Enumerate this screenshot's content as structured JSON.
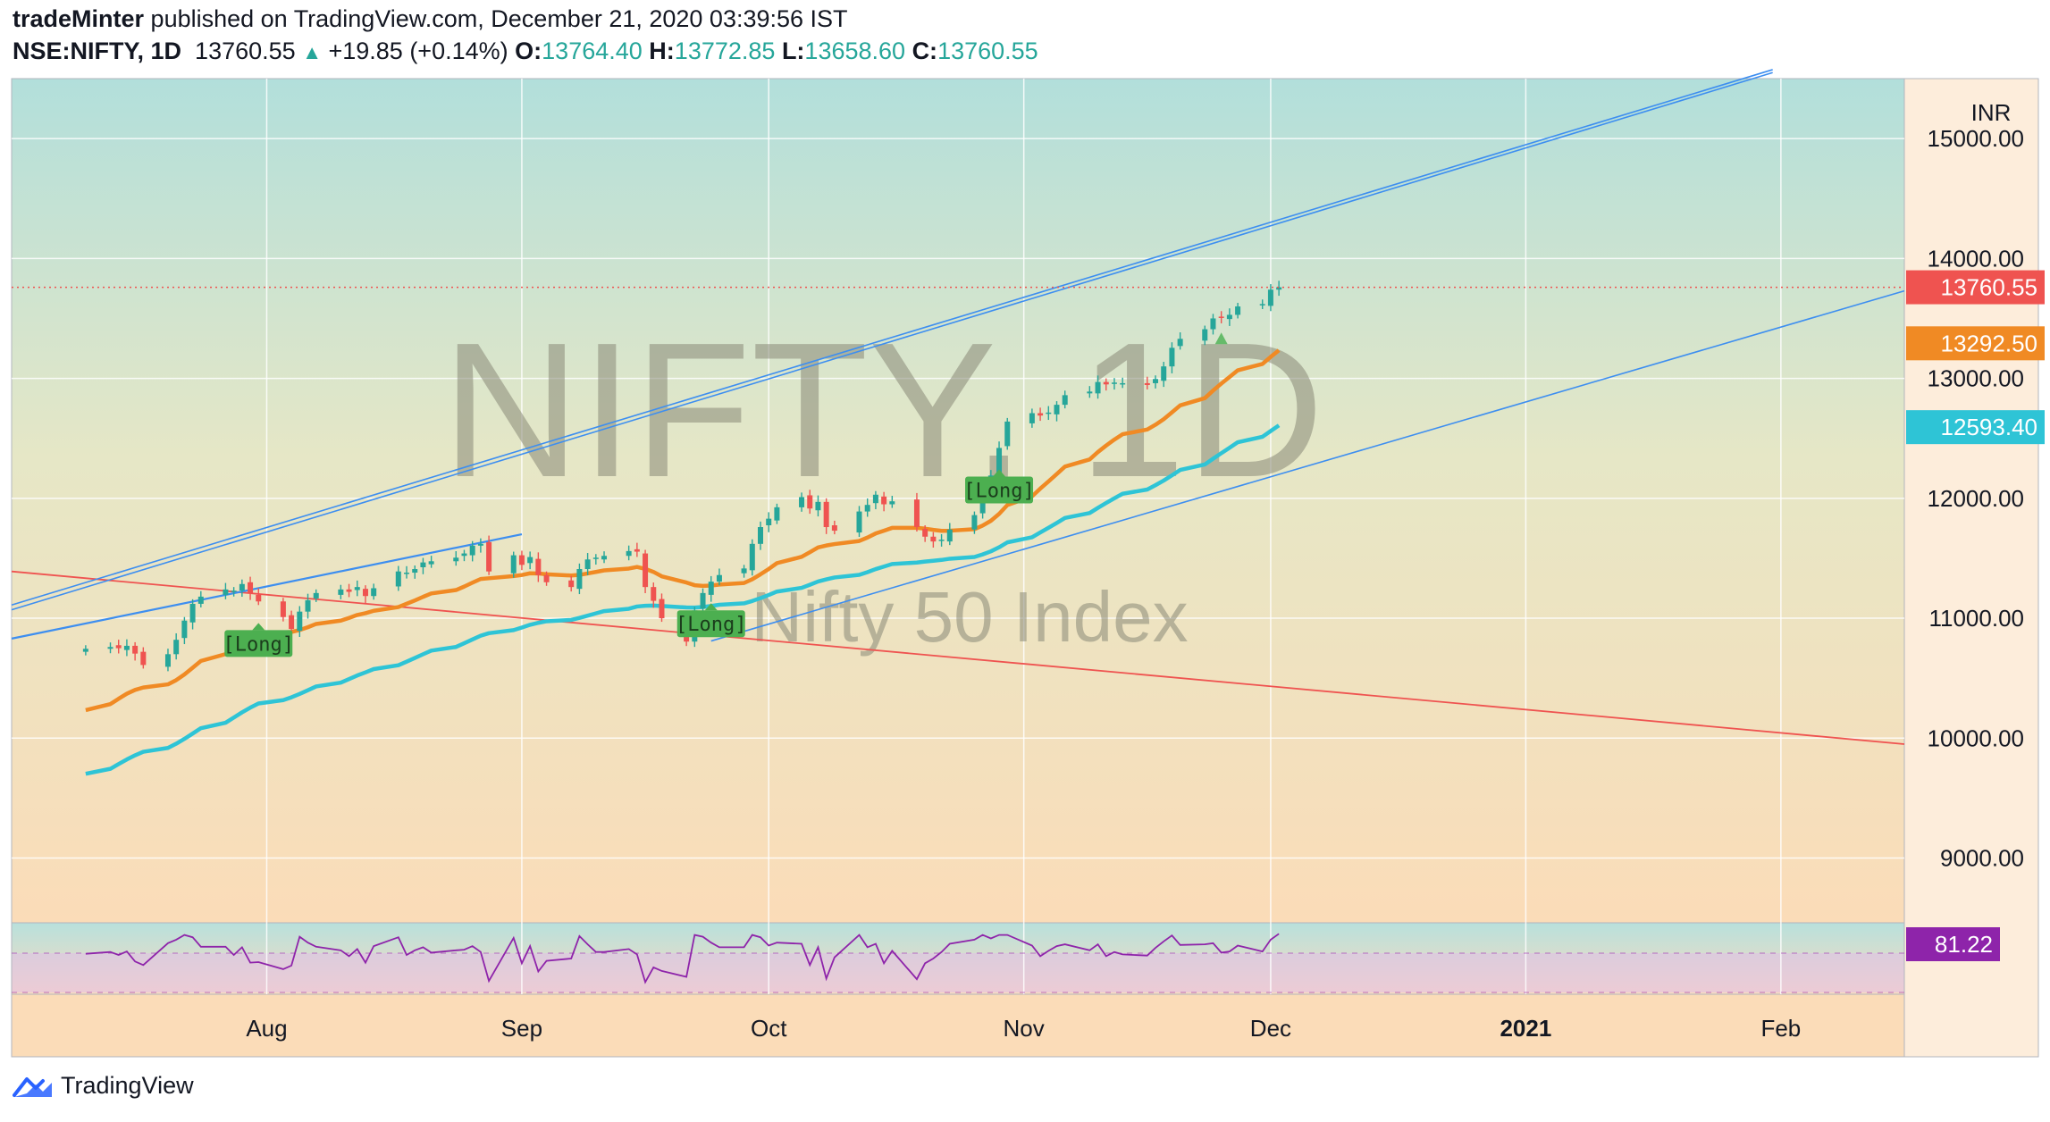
{
  "header": {
    "author": "tradeMinter",
    "published_text": "published on TradingView.com, December 21, 2020 03:39:56 IST",
    "symbol": "NSE:NIFTY, 1D",
    "last": "13760.55",
    "change": "+19.85 (+0.14%)",
    "open_label": "O:",
    "open": "13764.40",
    "high_label": "H:",
    "high": "13772.85",
    "low_label": "L:",
    "low": "13658.60",
    "close_label": "C:",
    "close": "13760.55"
  },
  "watermark": {
    "title": "NIFTY, 1D",
    "subtitle": "Nifty 50 Index"
  },
  "footer": {
    "brand": "TradingView"
  },
  "colors": {
    "up": "#26a69a",
    "down": "#ef5350",
    "ema_fast": "#f08a24",
    "ema_slow": "#2ec4d6",
    "channel": "#3d8ef0",
    "red_line": "#ef5350",
    "rsi": "#8e24aa",
    "long_tag": "#4caf50"
  },
  "chart_data": {
    "type": "candlestick",
    "currency": "INR",
    "y_axis_ticks": [
      "15000.00",
      "14000.00",
      "13000.00",
      "12000.00",
      "11000.00",
      "10000.00",
      "9000.00"
    ],
    "y_range": [
      8460,
      15500
    ],
    "x_axis_labels": [
      {
        "label": "Aug",
        "date": "2020-08-01",
        "bold": false
      },
      {
        "label": "Sep",
        "date": "2020-09-01",
        "bold": false
      },
      {
        "label": "Oct",
        "date": "2020-10-01",
        "bold": false
      },
      {
        "label": "Nov",
        "date": "2020-11-01",
        "bold": false
      },
      {
        "label": "Dec",
        "date": "2020-12-01",
        "bold": false
      },
      {
        "label": "2021",
        "date": "2021-01-01",
        "bold": true
      },
      {
        "label": "Feb",
        "date": "2021-02-01",
        "bold": false
      }
    ],
    "x_range": [
      "2020-07-01",
      "2021-02-16"
    ],
    "price_badges": [
      {
        "value": "13760.55",
        "color": "#ef5350",
        "role": "last price"
      },
      {
        "value": "13292.50",
        "color": "#f08a24",
        "role": "EMA fast"
      },
      {
        "value": "12593.40",
        "color": "#2ec4d6",
        "role": "EMA slow"
      },
      {
        "value": "81.22",
        "color": "#8e24aa",
        "role": "RSI"
      }
    ],
    "close_series": [
      10745,
      10760,
      10750,
      10770,
      10705,
      10610,
      10700,
      10820,
      10980,
      11120,
      11180,
      11240,
      11230,
      11285,
      11210,
      11140,
      11010,
      10910,
      11055,
      11150,
      11210,
      11240,
      11220,
      11260,
      11185,
      11250,
      11390,
      11380,
      11410,
      11465,
      11475,
      11505,
      11540,
      11605,
      11620,
      11390,
      11525,
      11445,
      11510,
      11360,
      11300,
      11260,
      11410,
      11490,
      11505,
      11520,
      11560,
      11555,
      11260,
      11145,
      11000,
      10805,
      11065,
      11210,
      11305,
      11360,
      11415,
      11620,
      11760,
      11830,
      11925,
      12010,
      11915,
      11970,
      11760,
      11730,
      11890,
      11945,
      12030,
      11950,
      11975,
      11760,
      11680,
      11640,
      11655,
      11740,
      11860,
      12060,
      12190,
      12420,
      12640,
      12710,
      12690,
      12715,
      12780,
      12860,
      12890,
      12970,
      12950,
      12965,
      12960,
      12945,
      12995,
      13100,
      13255,
      13330,
      13410,
      13500,
      13510,
      13530,
      13600,
      13620,
      13740,
      13760
    ],
    "ema_fast_end": 13292.5,
    "ema_slow_end": 12593.4,
    "rsi_last": 81.22,
    "signals": [
      {
        "label": "[Long]",
        "date": "2020-07-31"
      },
      {
        "label": "[Long]",
        "date": "2020-09-24"
      },
      {
        "label": "[Long]",
        "date": "2020-10-29"
      }
    ]
  }
}
